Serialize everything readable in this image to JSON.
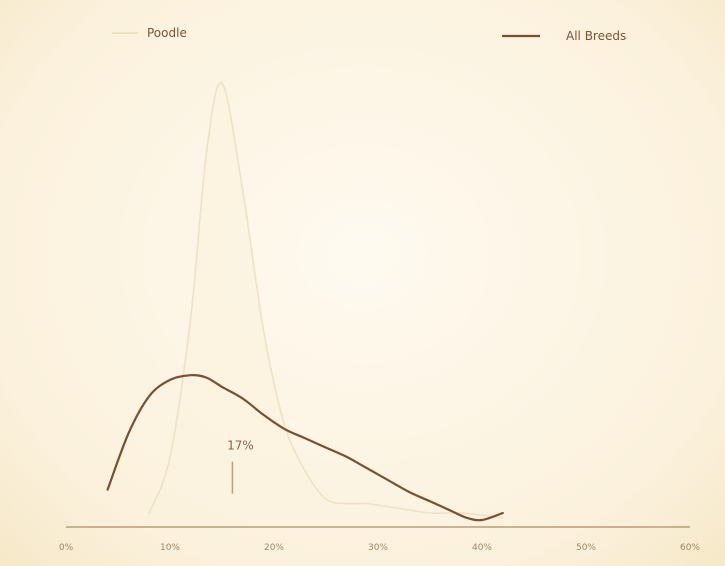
{
  "chart_data": {
    "type": "line",
    "title": "",
    "xlabel": "",
    "ylabel": "",
    "x_ticks": [
      "0%",
      "10%",
      "20%",
      "30%",
      "40%",
      "50%",
      "60%"
    ],
    "xlim": [
      0,
      60
    ],
    "ylim": [
      0,
      100
    ],
    "grid": false,
    "legend_position": "top",
    "series": [
      {
        "name": "Poodle",
        "style": "faint-peak",
        "color": "#efe2c4",
        "x": [
          8,
          10,
          12,
          13.5,
          15,
          17,
          19,
          21,
          23,
          25,
          27,
          29,
          32,
          35,
          38,
          42
        ],
        "y": [
          3,
          15,
          45,
          80,
          95,
          72,
          42,
          22,
          12,
          6,
          5,
          5,
          4,
          3,
          3,
          2
        ]
      },
      {
        "name": "All Breeds",
        "style": "solid",
        "color": "#7a5030",
        "x": [
          4,
          6,
          8,
          10,
          12,
          13.5,
          15,
          17,
          19,
          21,
          23,
          25,
          27,
          29,
          31,
          33,
          35,
          37,
          38.5,
          40,
          42
        ],
        "y": [
          8,
          20,
          28,
          31.5,
          32.5,
          32,
          30,
          27.5,
          24,
          21,
          19,
          17,
          15,
          12.5,
          10,
          7.5,
          5.5,
          3.5,
          2,
          1.5,
          3
        ]
      }
    ],
    "annotations": [
      {
        "text": "17%",
        "x": 16,
        "y": 8
      }
    ],
    "colors": {
      "axis": "#b89e78",
      "ticks": "#8a6a45",
      "annotation_text": "#8a6245",
      "annotation_arrow": "#b8a07c",
      "legend_text": "#7a5535"
    }
  }
}
